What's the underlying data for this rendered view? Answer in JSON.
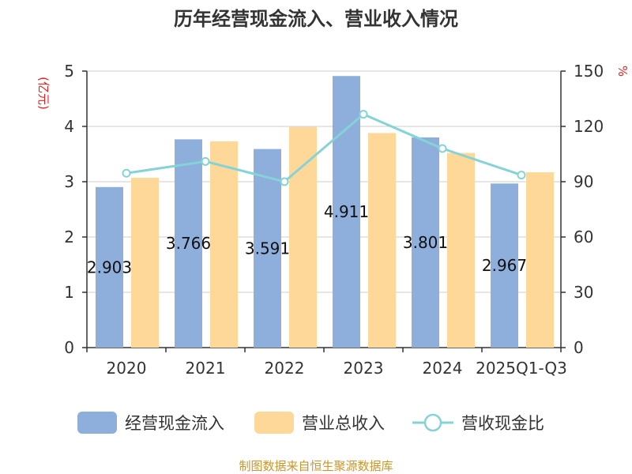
{
  "chart_data": {
    "type": "bar",
    "title": "历年经营现金流入、营业收入情况",
    "categories": [
      "2020",
      "2021",
      "2022",
      "2023",
      "2024",
      "2025Q1-Q3"
    ],
    "left_axis": {
      "unit": "(亿元)",
      "ylim": [
        0,
        5
      ],
      "ticks": [
        "0",
        "1",
        "2",
        "3",
        "4",
        "5"
      ]
    },
    "right_axis": {
      "unit": "%",
      "ylim": [
        0,
        150
      ],
      "ticks": [
        "0",
        "30",
        "60",
        "90",
        "120",
        "150"
      ]
    },
    "series": [
      {
        "name": "经营现金流入",
        "type": "bar",
        "axis": "left",
        "color": "#8eaedc",
        "values": [
          2.903,
          3.766,
          3.591,
          4.911,
          3.801,
          2.967
        ],
        "labels": [
          "2.903",
          "3.766",
          "3.591",
          "4.911",
          "3.801",
          "2.967"
        ]
      },
      {
        "name": "营业总收入",
        "type": "bar",
        "axis": "left",
        "color": "#fed898",
        "values": [
          3.07,
          3.73,
          3.99,
          3.88,
          3.52,
          3.17
        ]
      },
      {
        "name": "营收现金比",
        "type": "line",
        "axis": "right",
        "color": "#85d3d6",
        "values": [
          94.6,
          101.0,
          90.0,
          126.6,
          108.0,
          93.6
        ]
      }
    ],
    "grid": true,
    "legend_position": "bottom"
  },
  "source_text": "制图数据来自恒生聚源数据库"
}
